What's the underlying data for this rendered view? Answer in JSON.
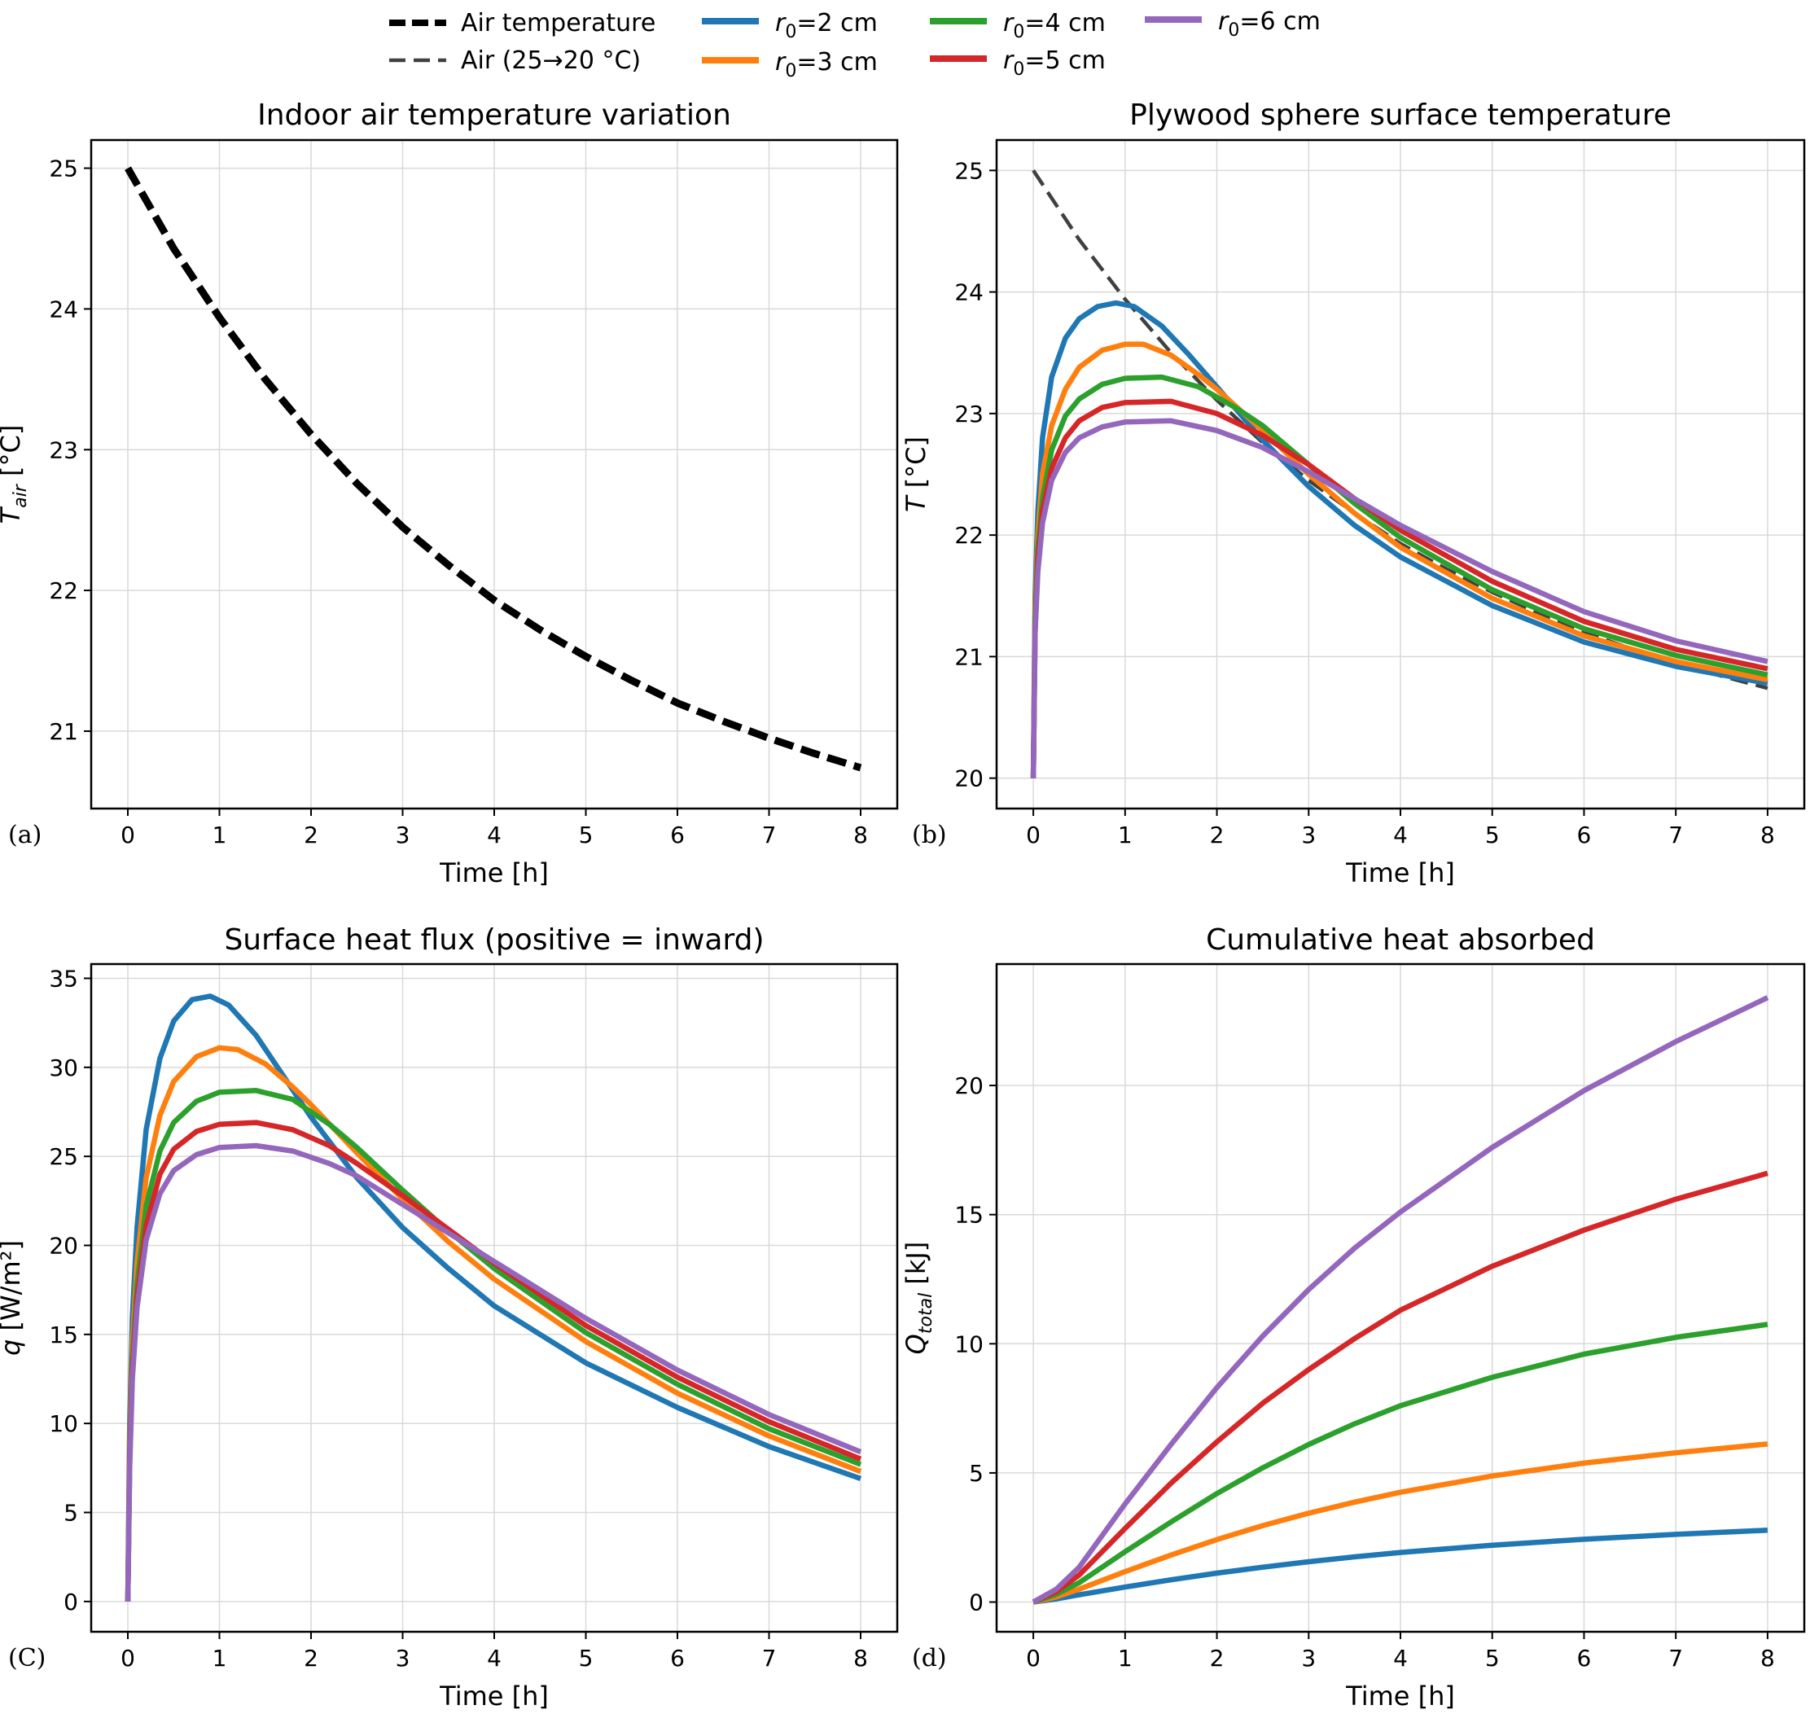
{
  "legend": [
    {
      "key": "air",
      "label": "Air temperature",
      "color": "#000000",
      "style": "dashed-bold"
    },
    {
      "key": "air2",
      "label": "Air (25→20 °C)",
      "color": "#404040",
      "style": "dashed"
    },
    {
      "key": "r2",
      "label_var": "r",
      "label_sub": "0",
      "label_rest": "=2 cm",
      "color": "#1f77b4",
      "style": "solid"
    },
    {
      "key": "r3",
      "label_var": "r",
      "label_sub": "0",
      "label_rest": "=3 cm",
      "color": "#ff7f0e",
      "style": "solid"
    },
    {
      "key": "r4",
      "label_var": "r",
      "label_sub": "0",
      "label_rest": "=4 cm",
      "color": "#2ca02c",
      "style": "solid"
    },
    {
      "key": "r5",
      "label_var": "r",
      "label_sub": "0",
      "label_rest": "=5 cm",
      "color": "#d62728",
      "style": "solid"
    },
    {
      "key": "r6",
      "label_var": "r",
      "label_sub": "0",
      "label_rest": "=6 cm",
      "color": "#9467bd",
      "style": "solid"
    }
  ],
  "chart_data": [
    {
      "id": "a",
      "type": "line",
      "panel_letter": "(a)",
      "title": "Indoor air temperature variation",
      "xlabel": "Time [h]",
      "ylabel_main": "T",
      "ylabel_sub": "air",
      "ylabel_rest": " [°C]",
      "xlim": [
        -0.4,
        8.4
      ],
      "ylim": [
        20.45,
        25.2
      ],
      "xticks": [
        0,
        1,
        2,
        3,
        4,
        5,
        6,
        7,
        8
      ],
      "yticks": [
        21,
        22,
        23,
        24,
        25
      ],
      "series": [
        {
          "key": "air",
          "name": "Air temperature",
          "x": [
            0,
            0.5,
            1,
            1.5,
            2,
            2.5,
            3,
            3.5,
            4,
            4.5,
            5,
            5.5,
            6,
            6.5,
            7,
            7.5,
            8
          ],
          "y": [
            25.0,
            24.43,
            23.94,
            23.5,
            23.11,
            22.76,
            22.45,
            22.18,
            21.93,
            21.72,
            21.53,
            21.36,
            21.2,
            21.07,
            20.95,
            20.84,
            20.74
          ]
        }
      ]
    },
    {
      "id": "b",
      "type": "line",
      "panel_letter": "(b)",
      "title": "Plywood sphere surface temperature",
      "xlabel": "Time [h]",
      "ylabel_main": "T",
      "ylabel_sub": "",
      "ylabel_rest": " [°C]",
      "xlim": [
        -0.4,
        8.4
      ],
      "ylim": [
        19.75,
        25.25
      ],
      "xticks": [
        0,
        1,
        2,
        3,
        4,
        5,
        6,
        7,
        8
      ],
      "yticks": [
        20,
        21,
        22,
        23,
        24,
        25
      ],
      "series": [
        {
          "key": "air2",
          "name": "Air (25→20 °C)",
          "x": [
            0,
            0.5,
            1,
            1.5,
            2,
            2.5,
            3,
            3.5,
            4,
            4.5,
            5,
            5.5,
            6,
            6.5,
            7,
            7.5,
            8
          ],
          "y": [
            25.0,
            24.43,
            23.94,
            23.5,
            23.11,
            22.76,
            22.45,
            22.18,
            21.93,
            21.72,
            21.53,
            21.36,
            21.2,
            21.07,
            20.95,
            20.84,
            20.74
          ]
        },
        {
          "key": "r2",
          "name": "r0=2 cm",
          "x": [
            0,
            0.02,
            0.05,
            0.1,
            0.2,
            0.35,
            0.5,
            0.7,
            0.9,
            1.1,
            1.4,
            1.7,
            2,
            2.5,
            3,
            3.5,
            4,
            5,
            6,
            7,
            8
          ],
          "y": [
            20.0,
            21.5,
            22.2,
            22.8,
            23.3,
            23.62,
            23.78,
            23.88,
            23.91,
            23.88,
            23.72,
            23.48,
            23.22,
            22.78,
            22.4,
            22.08,
            21.82,
            21.42,
            21.12,
            20.92,
            20.78
          ]
        },
        {
          "key": "r3",
          "name": "r0=3 cm",
          "x": [
            0,
            0.02,
            0.05,
            0.1,
            0.2,
            0.35,
            0.5,
            0.75,
            1,
            1.2,
            1.5,
            1.8,
            2,
            2.5,
            3,
            3.5,
            4,
            5,
            6,
            7,
            8
          ],
          "y": [
            20.0,
            21.4,
            22.0,
            22.5,
            22.9,
            23.2,
            23.38,
            23.52,
            23.57,
            23.57,
            23.48,
            23.32,
            23.2,
            22.86,
            22.5,
            22.18,
            21.9,
            21.48,
            21.17,
            20.96,
            20.81
          ]
        },
        {
          "key": "r4",
          "name": "r0=4 cm",
          "x": [
            0,
            0.02,
            0.05,
            0.1,
            0.2,
            0.35,
            0.5,
            0.75,
            1,
            1.4,
            1.8,
            2.2,
            2.5,
            3,
            3.5,
            4,
            5,
            6,
            7,
            8
          ],
          "y": [
            20.0,
            21.3,
            21.9,
            22.3,
            22.7,
            22.98,
            23.12,
            23.24,
            23.29,
            23.3,
            23.22,
            23.05,
            22.9,
            22.58,
            22.26,
            21.98,
            21.55,
            21.23,
            21.01,
            20.85
          ]
        },
        {
          "key": "r5",
          "name": "r0=5 cm",
          "x": [
            0,
            0.02,
            0.05,
            0.1,
            0.2,
            0.35,
            0.5,
            0.75,
            1,
            1.5,
            2,
            2.5,
            3,
            3.5,
            4,
            5,
            6,
            7,
            8
          ],
          "y": [
            20.0,
            21.2,
            21.8,
            22.2,
            22.55,
            22.8,
            22.94,
            23.05,
            23.09,
            23.1,
            23.0,
            22.82,
            22.58,
            22.3,
            22.04,
            21.62,
            21.29,
            21.06,
            20.9
          ]
        },
        {
          "key": "r6",
          "name": "r0=6 cm",
          "x": [
            0,
            0.02,
            0.05,
            0.1,
            0.2,
            0.35,
            0.5,
            0.75,
            1,
            1.5,
            2,
            2.5,
            3,
            3.5,
            4,
            5,
            6,
            7,
            8
          ],
          "y": [
            20.0,
            21.2,
            21.7,
            22.1,
            22.45,
            22.68,
            22.8,
            22.89,
            22.93,
            22.94,
            22.86,
            22.72,
            22.52,
            22.3,
            22.08,
            21.7,
            21.37,
            21.13,
            20.96
          ]
        }
      ]
    },
    {
      "id": "c",
      "type": "line",
      "panel_letter": "(C)",
      "title": "Surface heat flux (positive = inward)",
      "xlabel": "Time [h]",
      "ylabel_main": "q",
      "ylabel_sub": "",
      "ylabel_rest": " [W/m²]",
      "xlim": [
        -0.4,
        8.4
      ],
      "ylim": [
        -1.7,
        35.8
      ],
      "xticks": [
        0,
        1,
        2,
        3,
        4,
        5,
        6,
        7,
        8
      ],
      "yticks": [
        0,
        5,
        10,
        15,
        20,
        25,
        30,
        35
      ],
      "series": [
        {
          "key": "r2",
          "name": "r0=2 cm",
          "x": [
            0,
            0.02,
            0.05,
            0.1,
            0.2,
            0.35,
            0.5,
            0.7,
            0.9,
            1.1,
            1.4,
            1.7,
            2,
            2.5,
            3,
            3.5,
            4,
            5,
            6,
            7,
            8
          ],
          "y": [
            0,
            10,
            16,
            21,
            26.5,
            30.5,
            32.6,
            33.8,
            34.0,
            33.5,
            31.8,
            29.5,
            27.2,
            23.8,
            21.0,
            18.7,
            16.6,
            13.4,
            10.9,
            8.7,
            6.9
          ]
        },
        {
          "key": "r3",
          "name": "r0=3 cm",
          "x": [
            0,
            0.02,
            0.05,
            0.1,
            0.2,
            0.35,
            0.5,
            0.75,
            1,
            1.2,
            1.5,
            1.8,
            2,
            2.5,
            3,
            3.5,
            4,
            5,
            6,
            7,
            8
          ],
          "y": [
            0,
            9,
            14.5,
            19,
            23.8,
            27.3,
            29.2,
            30.6,
            31.1,
            31.0,
            30.2,
            28.9,
            27.9,
            25.2,
            22.6,
            20.2,
            18.1,
            14.6,
            11.7,
            9.3,
            7.3
          ]
        },
        {
          "key": "r4",
          "name": "r0=4 cm",
          "x": [
            0,
            0.02,
            0.05,
            0.1,
            0.2,
            0.35,
            0.5,
            0.75,
            1,
            1.4,
            1.8,
            2.2,
            2.5,
            3,
            3.5,
            4,
            5,
            6,
            7,
            8
          ],
          "y": [
            0,
            8.5,
            13.5,
            17.8,
            22.2,
            25.3,
            26.9,
            28.1,
            28.6,
            28.7,
            28.2,
            26.8,
            25.5,
            23.1,
            20.8,
            18.7,
            15.1,
            12.2,
            9.7,
            7.7
          ]
        },
        {
          "key": "r5",
          "name": "r0=5 cm",
          "x": [
            0,
            0.02,
            0.05,
            0.1,
            0.2,
            0.35,
            0.5,
            0.75,
            1,
            1.4,
            1.8,
            2.2,
            2.5,
            3,
            3.5,
            4,
            5,
            6,
            7,
            8
          ],
          "y": [
            0,
            8,
            13,
            17,
            21.1,
            24,
            25.4,
            26.4,
            26.8,
            26.9,
            26.5,
            25.6,
            24.6,
            22.8,
            20.9,
            19.0,
            15.5,
            12.6,
            10.1,
            8.0
          ]
        },
        {
          "key": "r6",
          "name": "r0=6 cm",
          "x": [
            0,
            0.02,
            0.05,
            0.1,
            0.2,
            0.35,
            0.5,
            0.75,
            1,
            1.4,
            1.8,
            2.2,
            2.5,
            3,
            3.5,
            4,
            5,
            6,
            7,
            8
          ],
          "y": [
            0,
            7.5,
            12.5,
            16.5,
            20.3,
            22.9,
            24.2,
            25.1,
            25.5,
            25.6,
            25.3,
            24.6,
            23.9,
            22.3,
            20.7,
            19.1,
            15.9,
            13.0,
            10.5,
            8.4
          ]
        }
      ]
    },
    {
      "id": "d",
      "type": "line",
      "panel_letter": "(d)",
      "title": "Cumulative heat absorbed",
      "xlabel": "Time [h]",
      "ylabel_main": "Q",
      "ylabel_sub": "total",
      "ylabel_rest": " [kJ]",
      "xlim": [
        -0.4,
        8.4
      ],
      "ylim": [
        -1.15,
        24.7
      ],
      "xticks": [
        0,
        1,
        2,
        3,
        4,
        5,
        6,
        7,
        8
      ],
      "yticks": [
        0,
        5,
        10,
        15,
        20
      ],
      "series": [
        {
          "key": "r2",
          "name": "r0=2 cm",
          "x": [
            0,
            0.25,
            0.5,
            1,
            1.5,
            2,
            2.5,
            3,
            3.5,
            4,
            5,
            6,
            7,
            8
          ],
          "y": [
            0,
            0.12,
            0.28,
            0.58,
            0.86,
            1.12,
            1.35,
            1.56,
            1.75,
            1.92,
            2.2,
            2.43,
            2.62,
            2.78
          ]
        },
        {
          "key": "r3",
          "name": "r0=3 cm",
          "x": [
            0,
            0.25,
            0.5,
            1,
            1.5,
            2,
            2.5,
            3,
            3.5,
            4,
            5,
            6,
            7,
            8
          ],
          "y": [
            0,
            0.2,
            0.5,
            1.18,
            1.82,
            2.42,
            2.96,
            3.44,
            3.87,
            4.25,
            4.88,
            5.38,
            5.78,
            6.12
          ]
        },
        {
          "key": "r4",
          "name": "r0=4 cm",
          "x": [
            0,
            0.25,
            0.5,
            1,
            1.5,
            2,
            2.5,
            3,
            3.5,
            4,
            5,
            6,
            7,
            8
          ],
          "y": [
            0,
            0.3,
            0.75,
            1.95,
            3.1,
            4.2,
            5.2,
            6.1,
            6.9,
            7.6,
            8.7,
            9.6,
            10.25,
            10.75
          ]
        },
        {
          "key": "r5",
          "name": "r0=5 cm",
          "x": [
            0,
            0.25,
            0.5,
            1,
            1.5,
            2,
            2.5,
            3,
            3.5,
            4,
            5,
            6,
            7,
            8
          ],
          "y": [
            0,
            0.4,
            1.05,
            2.85,
            4.6,
            6.2,
            7.7,
            9.0,
            10.2,
            11.3,
            13.0,
            14.4,
            15.6,
            16.6
          ]
        },
        {
          "key": "r6",
          "name": "r0=6 cm",
          "x": [
            0,
            0.25,
            0.5,
            1,
            1.5,
            2,
            2.5,
            3,
            3.5,
            4,
            5,
            6,
            7,
            8
          ],
          "y": [
            0,
            0.5,
            1.35,
            3.8,
            6.1,
            8.3,
            10.3,
            12.1,
            13.7,
            15.1,
            17.6,
            19.8,
            21.7,
            23.4
          ]
        }
      ]
    }
  ]
}
